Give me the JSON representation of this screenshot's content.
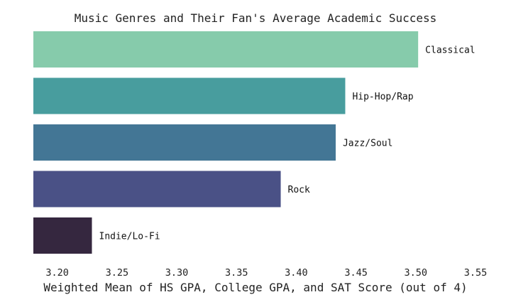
{
  "chart_data": {
    "type": "bar",
    "orientation": "horizontal",
    "title": "Music Genres and Their Fan's Average Academic Success",
    "xlabel": "Weighted Mean of HS GPA, College GPA, and SAT Score (out of 4)",
    "ylabel": "",
    "xlim": [
      3.18,
      3.55
    ],
    "xticks": [
      "3.20",
      "3.25",
      "3.30",
      "3.35",
      "3.40",
      "3.45",
      "3.50",
      "3.55"
    ],
    "grid": false,
    "legend": "none",
    "categories": [
      "Classical",
      "Hip-Hop/Rap",
      "Jazz/Soul",
      "Rock",
      "Indie/Lo-Fi"
    ],
    "values": [
      3.502,
      3.441,
      3.433,
      3.387,
      3.229
    ],
    "colors": [
      "#86cbab",
      "#489d9e",
      "#437695",
      "#4a5186",
      "#35273f"
    ]
  }
}
